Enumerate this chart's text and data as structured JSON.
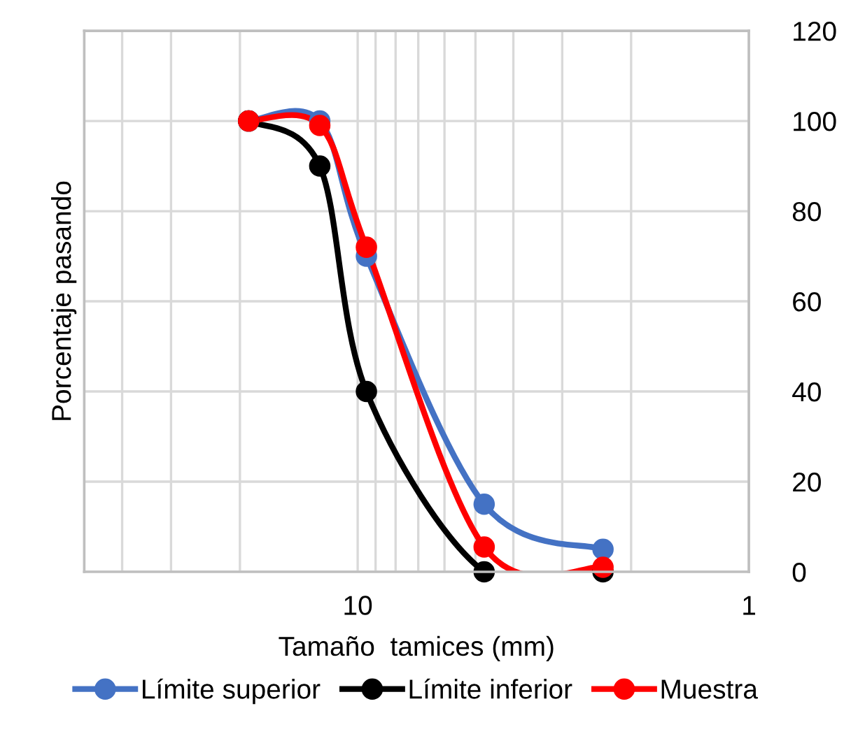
{
  "chart_data": {
    "type": "line",
    "xlabel": "Tamaño  tamices (mm)",
    "ylabel": "Porcentaje pasando",
    "x": [
      19,
      12.5,
      9.5,
      4.75,
      2.36
    ],
    "series": [
      {
        "name": "Límite superior",
        "color": "#4472c4",
        "values": [
          100,
          100,
          70,
          15,
          5
        ]
      },
      {
        "name": "Límite inferior",
        "color": "#000000",
        "values": [
          100,
          90,
          40,
          0,
          0
        ]
      },
      {
        "name": "Muestra",
        "color": "#ff0000",
        "values": [
          100,
          99,
          72,
          5.5,
          1
        ]
      }
    ],
    "log": "x",
    "xlim": [
      50,
      1
    ],
    "xticks": [
      {
        "value": 50,
        "label": null
      },
      {
        "value": 40,
        "label": null
      },
      {
        "value": 30,
        "label": null
      },
      {
        "value": 20,
        "label": null
      },
      10,
      {
        "value": 9,
        "label": null
      },
      {
        "value": 8,
        "label": null
      },
      {
        "value": 7,
        "label": null
      },
      {
        "value": 6,
        "label": null
      },
      {
        "value": 5,
        "label": null
      },
      {
        "value": 4,
        "label": null
      },
      {
        "value": 3,
        "label": null
      },
      {
        "value": 2,
        "label": null
      },
      1
    ],
    "ylim": [
      0,
      120
    ],
    "yticks": [
      0,
      20,
      40,
      60,
      80,
      100,
      120
    ],
    "grid": true,
    "legend": "bottom",
    "marker": "circle",
    "line_style": "solid"
  }
}
